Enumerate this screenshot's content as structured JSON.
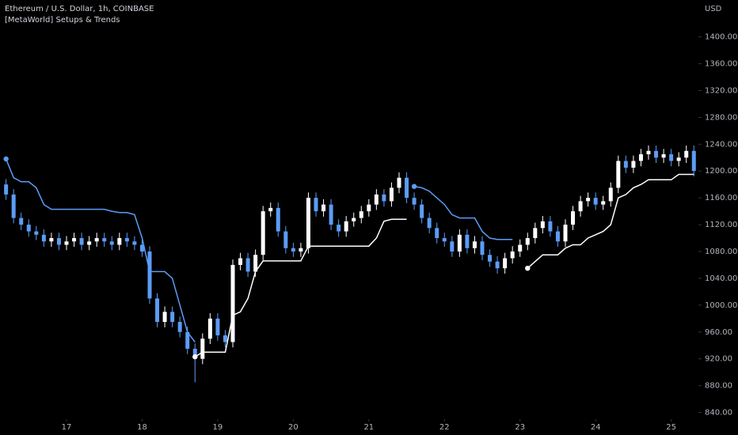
{
  "chart_data": {
    "type": "candlestick",
    "title": "Ethereum / U.S. Dollar, 1h, COINBASE",
    "subtitle": "[MetaWorld] Setups & Trends",
    "y_axis_label": "USD",
    "grid": false,
    "up_color": "#ffffff",
    "down_color": "#5b9cf6",
    "xlim": [
      16.12,
      25.36
    ],
    "xticks": [
      17,
      18,
      19,
      20,
      21,
      22,
      23,
      24,
      25
    ],
    "ylim": [
      830,
      1455
    ],
    "yticks": [
      {
        "value": 840,
        "label": "840.00"
      },
      {
        "value": 880,
        "label": "880.00"
      },
      {
        "value": 920,
        "label": "920.00"
      },
      {
        "value": 960,
        "label": "960.00"
      },
      {
        "value": 1000,
        "label": "1000.00"
      },
      {
        "value": 1040,
        "label": "1040.00"
      },
      {
        "value": 1080,
        "label": "1080.00"
      },
      {
        "value": 1120,
        "label": "1120.00"
      },
      {
        "value": 1160,
        "label": "1160.00"
      },
      {
        "value": 1200,
        "label": "1200.00"
      },
      {
        "value": 1240,
        "label": "1240.00"
      },
      {
        "value": 1280,
        "label": "1280.00"
      },
      {
        "value": 1320,
        "label": "1320.00"
      },
      {
        "value": 1360,
        "label": "1360.00"
      },
      {
        "value": 1400,
        "label": "1400.00"
      }
    ],
    "x": [
      16.2,
      16.3,
      16.4,
      16.5,
      16.6,
      16.7,
      16.8,
      16.9,
      17.0,
      17.1,
      17.2,
      17.3,
      17.4,
      17.5,
      17.6,
      17.7,
      17.8,
      17.9,
      18.0,
      18.1,
      18.2,
      18.3,
      18.4,
      18.5,
      18.6,
      18.7,
      18.8,
      18.9,
      19.0,
      19.1,
      19.2,
      19.3,
      19.4,
      19.5,
      19.6,
      19.7,
      19.8,
      19.9,
      20.0,
      20.1,
      20.2,
      20.3,
      20.4,
      20.5,
      20.6,
      20.7,
      20.8,
      20.9,
      21.0,
      21.1,
      21.2,
      21.3,
      21.4,
      21.5,
      21.6,
      21.7,
      21.8,
      21.9,
      22.0,
      22.1,
      22.2,
      22.3,
      22.4,
      22.5,
      22.6,
      22.7,
      22.8,
      22.9,
      23.0,
      23.1,
      23.2,
      23.3,
      23.4,
      23.5,
      23.6,
      23.7,
      23.8,
      23.9,
      24.0,
      24.1,
      24.2,
      24.3,
      24.4,
      24.5,
      24.6,
      24.7,
      24.8,
      24.9,
      25.0,
      25.1,
      25.2,
      25.3
    ],
    "open": [
      1180,
      1165,
      1130,
      1120,
      1110,
      1105,
      1095,
      1100,
      1090,
      1095,
      1100,
      1090,
      1095,
      1100,
      1095,
      1090,
      1100,
      1095,
      1090,
      1080,
      1010,
      975,
      990,
      975,
      960,
      935,
      920,
      950,
      980,
      955,
      945,
      1060,
      1070,
      1050,
      1075,
      1140,
      1145,
      1110,
      1085,
      1080,
      1085,
      1160,
      1140,
      1150,
      1120,
      1110,
      1125,
      1130,
      1140,
      1150,
      1165,
      1155,
      1175,
      1190,
      1160,
      1150,
      1130,
      1115,
      1100,
      1095,
      1080,
      1105,
      1085,
      1095,
      1075,
      1065,
      1055,
      1070,
      1080,
      1090,
      1100,
      1115,
      1125,
      1110,
      1095,
      1120,
      1140,
      1155,
      1160,
      1150,
      1155,
      1175,
      1215,
      1205,
      1215,
      1225,
      1230,
      1220,
      1225,
      1215,
      1220,
      1230
    ],
    "high": [
      1188,
      1173,
      1138,
      1128,
      1118,
      1113,
      1108,
      1108,
      1103,
      1108,
      1108,
      1103,
      1108,
      1108,
      1103,
      1108,
      1108,
      1103,
      1098,
      1088,
      1018,
      998,
      998,
      983,
      968,
      943,
      958,
      988,
      988,
      963,
      1068,
      1078,
      1078,
      1083,
      1148,
      1153,
      1153,
      1118,
      1093,
      1093,
      1168,
      1168,
      1158,
      1158,
      1128,
      1133,
      1138,
      1148,
      1158,
      1173,
      1173,
      1183,
      1198,
      1198,
      1168,
      1158,
      1138,
      1123,
      1108,
      1103,
      1113,
      1113,
      1103,
      1103,
      1083,
      1073,
      1078,
      1088,
      1098,
      1108,
      1123,
      1133,
      1133,
      1118,
      1128,
      1148,
      1163,
      1168,
      1168,
      1163,
      1183,
      1223,
      1223,
      1223,
      1233,
      1238,
      1238,
      1233,
      1233,
      1228,
      1238,
      1238
    ],
    "low": [
      1157,
      1122,
      1112,
      1102,
      1097,
      1087,
      1087,
      1082,
      1082,
      1087,
      1082,
      1082,
      1087,
      1087,
      1082,
      1082,
      1087,
      1082,
      1072,
      1002,
      967,
      967,
      967,
      952,
      927,
      885,
      912,
      942,
      947,
      937,
      937,
      1052,
      1042,
      1042,
      1067,
      1132,
      1102,
      1077,
      1072,
      1072,
      1077,
      1132,
      1132,
      1112,
      1102,
      1102,
      1117,
      1122,
      1132,
      1142,
      1147,
      1147,
      1167,
      1152,
      1142,
      1122,
      1107,
      1092,
      1087,
      1072,
      1072,
      1077,
      1077,
      1067,
      1057,
      1047,
      1047,
      1062,
      1072,
      1082,
      1092,
      1107,
      1102,
      1087,
      1087,
      1112,
      1132,
      1147,
      1142,
      1142,
      1147,
      1167,
      1197,
      1197,
      1207,
      1217,
      1212,
      1212,
      1207,
      1207,
      1212,
      1192
    ],
    "close": [
      1165,
      1130,
      1120,
      1110,
      1105,
      1095,
      1100,
      1090,
      1095,
      1100,
      1090,
      1095,
      1100,
      1095,
      1090,
      1100,
      1095,
      1090,
      1080,
      1010,
      975,
      990,
      975,
      960,
      935,
      920,
      950,
      980,
      955,
      945,
      1060,
      1070,
      1050,
      1075,
      1140,
      1145,
      1110,
      1085,
      1080,
      1085,
      1160,
      1140,
      1150,
      1120,
      1110,
      1125,
      1130,
      1140,
      1150,
      1165,
      1155,
      1175,
      1190,
      1160,
      1150,
      1130,
      1115,
      1100,
      1095,
      1080,
      1105,
      1085,
      1095,
      1075,
      1065,
      1055,
      1070,
      1080,
      1090,
      1100,
      1115,
      1125,
      1110,
      1095,
      1120,
      1140,
      1155,
      1160,
      1150,
      1155,
      1175,
      1215,
      1205,
      1215,
      1225,
      1230,
      1220,
      1225,
      1215,
      1220,
      1230,
      1200
    ],
    "lines": [
      {
        "color": "#5b9cf6",
        "values": [
          1218,
          1190,
          1184,
          1184,
          1175,
          1150,
          1143,
          1143,
          1143,
          1143,
          1143,
          1143,
          1143,
          1143,
          1140,
          1138,
          1138,
          1135,
          1100,
          1050,
          1050,
          1050,
          1040,
          1000,
          960,
          945,
          null,
          null,
          null,
          null,
          null,
          null,
          null,
          null,
          null,
          null,
          null,
          null,
          null,
          null,
          null,
          null,
          null,
          null,
          null,
          null,
          null,
          null,
          null,
          null,
          null,
          null,
          null,
          null,
          1177,
          1175,
          1170,
          1160,
          1150,
          1135,
          1130,
          1130,
          1130,
          1110,
          1100,
          1098,
          1098,
          1098,
          null,
          null,
          null,
          null,
          null,
          null,
          null,
          null,
          null,
          null,
          null,
          null,
          null,
          null,
          null,
          null,
          null,
          null,
          null,
          null,
          null,
          null,
          null,
          null
        ]
      },
      {
        "color": "#ffffff",
        "values": [
          null,
          null,
          null,
          null,
          null,
          null,
          null,
          null,
          null,
          null,
          null,
          null,
          null,
          null,
          null,
          null,
          null,
          null,
          null,
          null,
          null,
          null,
          null,
          null,
          null,
          923,
          930,
          930,
          930,
          930,
          985,
          990,
          1010,
          1050,
          1066,
          1066,
          1066,
          1066,
          1066,
          1066,
          1088,
          1088,
          1088,
          1088,
          1088,
          1088,
          1088,
          1088,
          1088,
          1100,
          1125,
          1128,
          1128,
          1128,
          null,
          null,
          null,
          null,
          null,
          null,
          null,
          null,
          null,
          null,
          null,
          null,
          null,
          null,
          null,
          1055,
          1065,
          1075,
          1075,
          1075,
          1085,
          1090,
          1090,
          1100,
          1105,
          1110,
          1120,
          1160,
          1165,
          1175,
          1180,
          1187,
          1187,
          1187,
          1187,
          1195,
          1195,
          1195
        ]
      }
    ]
  }
}
